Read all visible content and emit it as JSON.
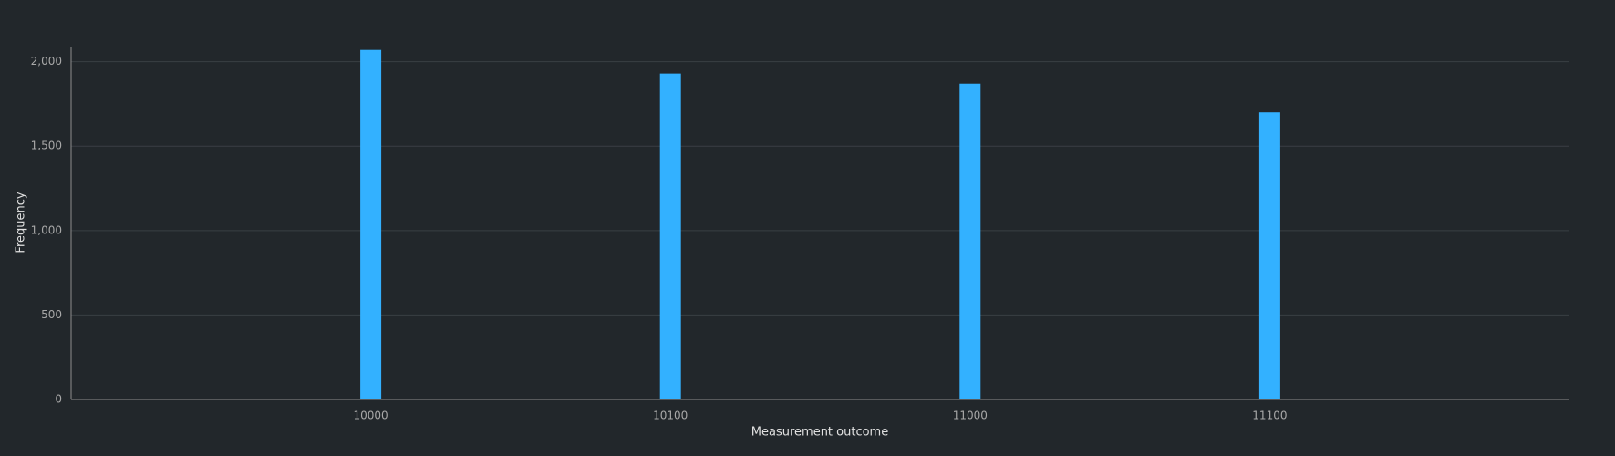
{
  "chart_data": {
    "type": "bar",
    "x_label": "Measurement outcome",
    "y_label": "Frequency",
    "categories": [
      "10000",
      "10100",
      "11000",
      "11100"
    ],
    "values": [
      2070,
      1930,
      1870,
      1700
    ],
    "color": "#33b1ff",
    "ylim": [
      0,
      2090
    ],
    "yticks": [
      0,
      500,
      {
        "value": 1000,
        "label": "1,000"
      },
      {
        "value": 1500,
        "label": "1,500"
      },
      {
        "value": 2000,
        "label": "2,000"
      }
    ],
    "grid": true
  }
}
